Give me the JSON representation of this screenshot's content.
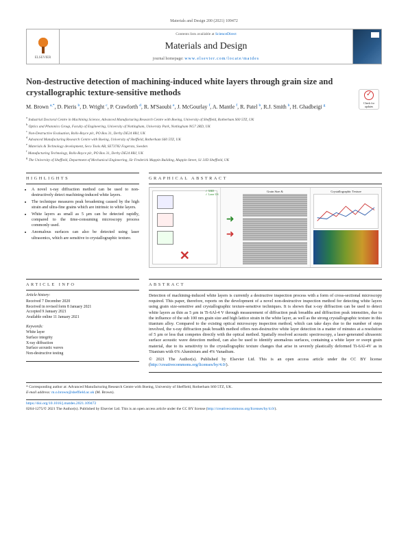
{
  "header": {
    "citation": "Materials and Design 200 (2021) 109472",
    "contents_prefix": "Contents lists available at ",
    "contents_link": "ScienceDirect",
    "journal_title": "Materials and Design",
    "homepage_prefix": "journal homepage: ",
    "homepage_url": "www.elsevier.com/locate/matdes",
    "publisher_label": "ELSEVIER"
  },
  "article": {
    "title": "Non-destructive detection of machining-induced white layers through grain size and crystallographic texture-sensitive methods",
    "check_label": "Check for updates",
    "authors_html": "M. Brown <sup>a,*</sup>, D. Pieris <sup>b</sup>, D. Wright <sup>c</sup>, P. Crawforth <sup>d</sup>, R. M'Saoubi <sup>e</sup>, J. McGourlay <sup>f</sup>, A. Mantle <sup>f</sup>, R. Patel <sup>b</sup>, R.J. Smith <sup>b</sup>, H. Ghadbeigi <sup>g</sup>"
  },
  "affiliations": [
    "a Industrial Doctoral Centre in Machining Science, Advanced Manufacturing Research Centre with Boeing, University of Sheffield, Rotherham S60 5TZ, UK",
    "b Optics and Photonics Group, Faculty of Engineering, University of Nottingham, University Park, Nottingham NG7 2RD, UK",
    "c Non-Destructive Evaluation, Rolls-Royce plc, PO Box 31, Derby DE24 8BJ, UK",
    "d Advanced Manufacturing Research Centre with Boeing, University of Sheffield, Rotherham S60 5TZ, UK",
    "e Materials & Technology development, Seco Tools AB, SE73782 Fagersta, Sweden",
    "f Manufacturing Technology, Rolls-Royce plc, PO Box 31, Derby DE24 8BJ, UK",
    "g The University of Sheffield, Department of Mechanical Engineering, Sir Frederick Mappin Building, Mappin Street, S1 3JD Sheffield, UK"
  ],
  "sections": {
    "highlights_head": "HIGHLIGHTS",
    "graphical_head": "GRAPHICAL ABSTRACT",
    "article_info_head": "ARTICLE INFO",
    "abstract_head": "ABSTRACT"
  },
  "highlights": [
    "A novel x-ray diffraction method can be used to non-destructively detect machining-induced white layers.",
    "The technique measures peak broadening caused by the high strain and ultra-fine grains which are intrinsic to white layers.",
    "White layers as small as 5 μm can be detected rapidly, compared to the time-consuming microscopy process commonly used.",
    "Anomalous surfaces can also be detected using laser ultrasonics, which are sensitive to crystallographic texture."
  ],
  "graphical_abstract": {
    "panel1": {
      "label_top": "Destructive machined",
      "checks": [
        "✓ XRD",
        "✓ Laser US"
      ],
      "cross": "✕"
    },
    "panel2_title": "Grain Size &",
    "panel3_title": "Crystallographic Texture",
    "arrow_colors": {
      "green": "#2a8a2a",
      "red": "#cc3333"
    },
    "heatmap_colors": [
      "#1a4a8a",
      "#2a7a4a",
      "#7a9a2a",
      "#ca9a2a",
      "#ca4a2a"
    ]
  },
  "article_info": {
    "history_head": "Article history:",
    "received": "Received 7 December 2020",
    "revised": "Received in revised form 8 January 2021",
    "accepted": "Accepted 9 January 2021",
    "online": "Available online 11 January 2021",
    "keywords_head": "Keywords:",
    "keywords": [
      "White layer",
      "Surface integrity",
      "X-ray diffraction",
      "Surface acoustic waves",
      "Non-destructive testing"
    ]
  },
  "abstract": {
    "text": "Detection of machining-induced white layers is currently a destructive inspection process with a form of cross-sectional microscopy required. This paper, therefore, reports on the development of a novel non-destructive inspection method for detecting white layers using grain size-sensitive and crystallographic texture-sensitive techniques. It is shown that x-ray diffraction can be used to detect white layers as thin as 5 μm in Ti-6Al-4 V through measurement of diffraction peak breadths and diffraction peak intensities, due to the influence of the sub 100 nm grain size and high lattice strain in the white layer, as well as the strong crystallographic texture in this titanium alloy. Compared to the existing optical microscopy inspection method, which can take days due to the number of steps involved, the x-ray diffraction peak breadth method offers non-destructive white layer detection in a matter of minutes at a resolution of 5 μm or less that competes directly with the optical method. Spatially resolved acoustic spectroscopy, a laser-generated ultrasonic surface acoustic wave detection method, can also be used to identify anomalous surfaces, containing a white layer or swept grain material, due to its sensitivity to the crystallographic texture changes that arise in severely plastically deformed Ti-6Al-4V as in Titanium with 6% Aluminium and 4% Vanadium.",
    "copyright": "© 2021 The Author(s). Published by Elsevier Ltd. This is an open access article under the CC BY license (",
    "license_url": "http://creativecommons.org/licenses/by/4.0/",
    "close_paren": ")."
  },
  "corresponding": {
    "star": "* Corresponding author at: Advanced Manufacturing Research Centre with Boeing, University of Sheffield, Rotherham S60 5TZ, UK.",
    "email_label": "E-mail address: ",
    "email": "m.o.brown@sheffield.ac.uk",
    "email_suffix": " (M. Brown)."
  },
  "footer": {
    "doi": "https://doi.org/10.1016/j.matdes.2021.109472",
    "issn_line": "0264-1275/© 2021 The Author(s). Published by Elsevier Ltd. This is an open access article under the CC BY license (",
    "license_url": "http://creativecommons.org/licenses/by/4.0/",
    "close": ")."
  }
}
